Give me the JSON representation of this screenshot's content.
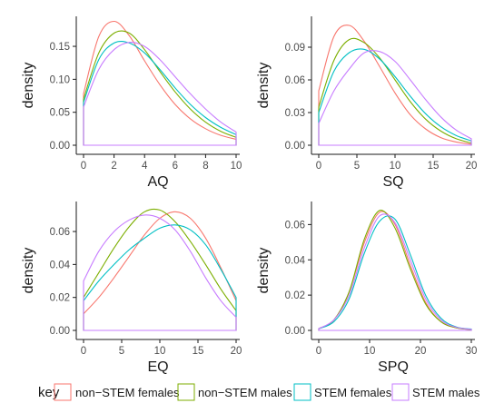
{
  "chart_data": [
    {
      "type": "line",
      "xlabel": "AQ",
      "ylabel": "density",
      "xlim": [
        0,
        10
      ],
      "ylim": [
        0,
        0.19
      ],
      "xticks": [
        0,
        2,
        4,
        6,
        8,
        10
      ],
      "yticks": [
        0.0,
        0.05,
        0.1,
        0.15
      ],
      "ytick_labels": [
        "0.00",
        "0.05",
        "0.10",
        "0.15"
      ],
      "x": [
        0,
        1,
        2,
        3,
        4,
        5,
        6,
        7,
        8,
        9,
        10
      ],
      "series": [
        {
          "name": "non−STEM females",
          "values": [
            0.078,
            0.165,
            0.188,
            0.166,
            0.128,
            0.092,
            0.062,
            0.04,
            0.025,
            0.015,
            0.009
          ]
        },
        {
          "name": "non−STEM males",
          "values": [
            0.07,
            0.14,
            0.17,
            0.17,
            0.145,
            0.112,
            0.081,
            0.055,
            0.035,
            0.021,
            0.012
          ]
        },
        {
          "name": "STEM females",
          "values": [
            0.065,
            0.13,
            0.155,
            0.155,
            0.14,
            0.115,
            0.087,
            0.062,
            0.042,
            0.027,
            0.016
          ]
        },
        {
          "name": "STEM males",
          "values": [
            0.058,
            0.115,
            0.145,
            0.156,
            0.15,
            0.13,
            0.104,
            0.078,
            0.055,
            0.035,
            0.02
          ]
        }
      ]
    },
    {
      "type": "line",
      "xlabel": "SQ",
      "ylabel": "density",
      "xlim": [
        0,
        20
      ],
      "ylim": [
        0,
        0.115
      ],
      "xticks": [
        0,
        5,
        10,
        15,
        20
      ],
      "yticks": [
        0.0,
        0.03,
        0.06,
        0.09
      ],
      "ytick_labels": [
        "0.00",
        "0.03",
        "0.06",
        "0.09"
      ],
      "x": [
        0,
        2,
        4,
        6,
        8,
        10,
        12,
        14,
        16,
        18,
        20
      ],
      "series": [
        {
          "name": "non−STEM females",
          "values": [
            0.05,
            0.1,
            0.11,
            0.095,
            0.072,
            0.048,
            0.028,
            0.015,
            0.007,
            0.003,
            0.001
          ]
        },
        {
          "name": "non−STEM males",
          "values": [
            0.035,
            0.078,
            0.097,
            0.094,
            0.08,
            0.06,
            0.04,
            0.024,
            0.013,
            0.006,
            0.002
          ]
        },
        {
          "name": "STEM females",
          "values": [
            0.03,
            0.068,
            0.085,
            0.088,
            0.079,
            0.063,
            0.045,
            0.029,
            0.017,
            0.009,
            0.004
          ]
        },
        {
          "name": "STEM males",
          "values": [
            0.02,
            0.05,
            0.07,
            0.085,
            0.086,
            0.077,
            0.06,
            0.042,
            0.026,
            0.014,
            0.006
          ]
        }
      ]
    },
    {
      "type": "line",
      "xlabel": "EQ",
      "ylabel": "density",
      "xlim": [
        0,
        20
      ],
      "ylim": [
        0,
        0.076
      ],
      "xticks": [
        0,
        5,
        10,
        15,
        20
      ],
      "yticks": [
        0.0,
        0.02,
        0.04,
        0.06
      ],
      "ytick_labels": [
        "0.00",
        "0.02",
        "0.04",
        "0.06"
      ],
      "x": [
        0,
        2,
        4,
        6,
        8,
        10,
        12,
        14,
        16,
        18,
        20
      ],
      "series": [
        {
          "name": "non−STEM females",
          "values": [
            0.01,
            0.02,
            0.032,
            0.045,
            0.058,
            0.068,
            0.072,
            0.068,
            0.056,
            0.038,
            0.018
          ]
        },
        {
          "name": "non−STEM males",
          "values": [
            0.02,
            0.035,
            0.05,
            0.063,
            0.072,
            0.073,
            0.066,
            0.054,
            0.04,
            0.025,
            0.012
          ]
        },
        {
          "name": "STEM females",
          "values": [
            0.018,
            0.03,
            0.04,
            0.049,
            0.056,
            0.062,
            0.064,
            0.061,
            0.052,
            0.037,
            0.02
          ]
        },
        {
          "name": "STEM males",
          "values": [
            0.03,
            0.048,
            0.06,
            0.067,
            0.07,
            0.068,
            0.061,
            0.048,
            0.032,
            0.018,
            0.008
          ]
        }
      ]
    },
    {
      "type": "line",
      "xlabel": "SPQ",
      "ylabel": "density",
      "xlim": [
        0,
        30
      ],
      "ylim": [
        0,
        0.071
      ],
      "xticks": [
        0,
        10,
        20,
        30
      ],
      "yticks": [
        0.0,
        0.02,
        0.04,
        0.06
      ],
      "ytick_labels": [
        "0.00",
        "0.02",
        "0.04",
        "0.06"
      ],
      "x": [
        0,
        3,
        6,
        9,
        12,
        15,
        18,
        21,
        24,
        27,
        30
      ],
      "series": [
        {
          "name": "non−STEM females",
          "values": [
            0.001,
            0.006,
            0.022,
            0.05,
            0.067,
            0.06,
            0.037,
            0.016,
            0.005,
            0.0015,
            0.0005
          ]
        },
        {
          "name": "non−STEM males",
          "values": [
            0.001,
            0.006,
            0.022,
            0.052,
            0.068,
            0.058,
            0.035,
            0.015,
            0.005,
            0.0015,
            0.0005
          ]
        },
        {
          "name": "STEM females",
          "values": [
            0.001,
            0.005,
            0.018,
            0.044,
            0.062,
            0.063,
            0.043,
            0.02,
            0.007,
            0.002,
            0.0007
          ]
        },
        {
          "name": "STEM males",
          "values": [
            0.001,
            0.006,
            0.02,
            0.047,
            0.065,
            0.061,
            0.04,
            0.018,
            0.006,
            0.0018,
            0.0006
          ]
        }
      ]
    }
  ],
  "legend": {
    "title": "key",
    "placement": "bottom",
    "entries": [
      "non−STEM females",
      "non−STEM males",
      "STEM females",
      "STEM males"
    ]
  },
  "colors": {
    "non−STEM females": "#F8766D",
    "non−STEM males": "#7CAE00",
    "STEM females": "#00BFC4",
    "STEM males": "#C77CFF",
    "axis": "#1a1a1a"
  }
}
